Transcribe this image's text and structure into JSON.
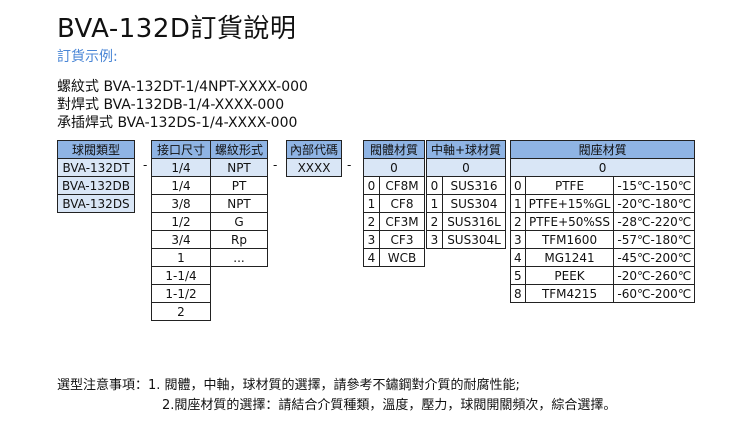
{
  "title": "BVA-132D訂貨說明",
  "subtitle": "訂貨示例:",
  "examples": [
    "螺紋式 BVA-132DT-1/4NPT-XXXX-000",
    "對焊式 BVA-132DB-1/4-XXXX-000",
    "承插焊式 BVA-132DS-1/4-XXXX-000"
  ],
  "type_col": {
    "header": "球閥類型",
    "rows": [
      "BVA-132DT",
      "BVA-132DB",
      "BVA-132DS"
    ]
  },
  "size_col": {
    "header": "接口尺寸",
    "rows": [
      "1/4",
      "1/4",
      "3/8",
      "1/2",
      "3/4",
      "1",
      "1-1/4",
      "1-1/2",
      "2"
    ]
  },
  "thread_col": {
    "header": "螺紋形式",
    "rows": [
      "NPT",
      "PT",
      "NPT",
      "G",
      "Rp",
      "..."
    ]
  },
  "code_col": {
    "header": "內部代碼",
    "value": "XXXX"
  },
  "body_col": {
    "header": "閥體材質",
    "value": "0",
    "rows": [
      [
        "0",
        "CF8M"
      ],
      [
        "1",
        "CF8"
      ],
      [
        "2",
        "CF3M"
      ],
      [
        "3",
        "CF3"
      ],
      [
        "4",
        "WCB"
      ]
    ]
  },
  "stem_col": {
    "header": "中軸+球材質",
    "value": "0",
    "rows": [
      [
        "0",
        "SUS316"
      ],
      [
        "1",
        "SUS304"
      ],
      [
        "2",
        "SUS316L"
      ],
      [
        "3",
        "SUS304L"
      ]
    ]
  },
  "seat_col": {
    "header": "閥座材質",
    "value": "0",
    "rows": [
      [
        "0",
        "PTFE",
        "-15℃-150℃"
      ],
      [
        "1",
        "PTFE+15%GL",
        "-20℃-180℃"
      ],
      [
        "2",
        "PTFE+50%SS",
        "-28℃-220℃"
      ],
      [
        "3",
        "TFM1600",
        "-57℃-180℃"
      ],
      [
        "4",
        "MG1241",
        "-45℃-200℃"
      ],
      [
        "5",
        "PEEK",
        "-20℃-260℃"
      ],
      [
        "8",
        "TFM4215",
        "-60℃-200℃"
      ]
    ]
  },
  "dash": "-",
  "note": {
    "line1": "選型注意事項：1. 閥體，中軸，球材質的選擇，請參考不鏽鋼對介質的耐腐性能;",
    "line2": "2.閥座材質的選擇：請結合介質種類，溫度，壓力，球閥開關頻次，綜合選擇。"
  }
}
